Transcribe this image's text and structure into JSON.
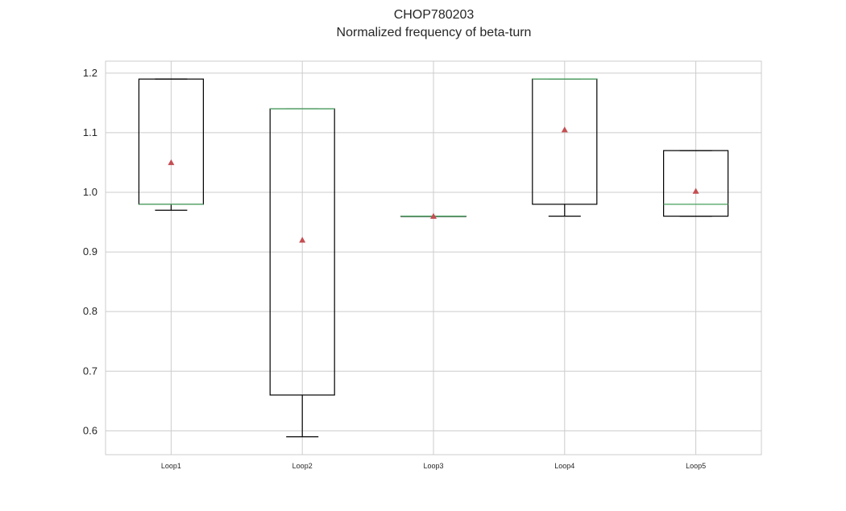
{
  "title": "CHOP780203",
  "subtitle": "Normalized frequency of beta-turn",
  "colors": {
    "box": "#000000",
    "median": "#55a868",
    "mean": "#c44e52",
    "grid": "#cccccc"
  },
  "chart_data": {
    "type": "box",
    "title": "CHOP780203",
    "subtitle": "Normalized frequency of beta-turn",
    "xlabel": "",
    "ylabel": "",
    "ylim": [
      0.56,
      1.22
    ],
    "yticks": [
      0.6,
      0.7,
      0.8,
      0.9,
      1.0,
      1.1,
      1.2
    ],
    "grid": true,
    "categories": [
      "Loop1",
      "Loop2",
      "Loop3",
      "Loop4",
      "Loop5"
    ],
    "boxes": [
      {
        "label": "Loop1",
        "whisker_low": 0.97,
        "q1": 0.98,
        "median": 0.98,
        "q3": 1.19,
        "whisker_high": 1.19,
        "mean": 1.05
      },
      {
        "label": "Loop2",
        "whisker_low": 0.59,
        "q1": 0.66,
        "median": 1.14,
        "q3": 1.14,
        "whisker_high": 1.14,
        "mean": 0.92
      },
      {
        "label": "Loop3",
        "whisker_low": 0.96,
        "q1": 0.96,
        "median": 0.96,
        "q3": 0.96,
        "whisker_high": 0.96,
        "mean": 0.96
      },
      {
        "label": "Loop4",
        "whisker_low": 0.96,
        "q1": 0.98,
        "median": 1.19,
        "q3": 1.19,
        "whisker_high": 1.19,
        "mean": 1.105
      },
      {
        "label": "Loop5",
        "whisker_low": 0.96,
        "q1": 0.96,
        "median": 0.98,
        "q3": 1.07,
        "whisker_high": 1.07,
        "mean": 1.002
      }
    ]
  }
}
